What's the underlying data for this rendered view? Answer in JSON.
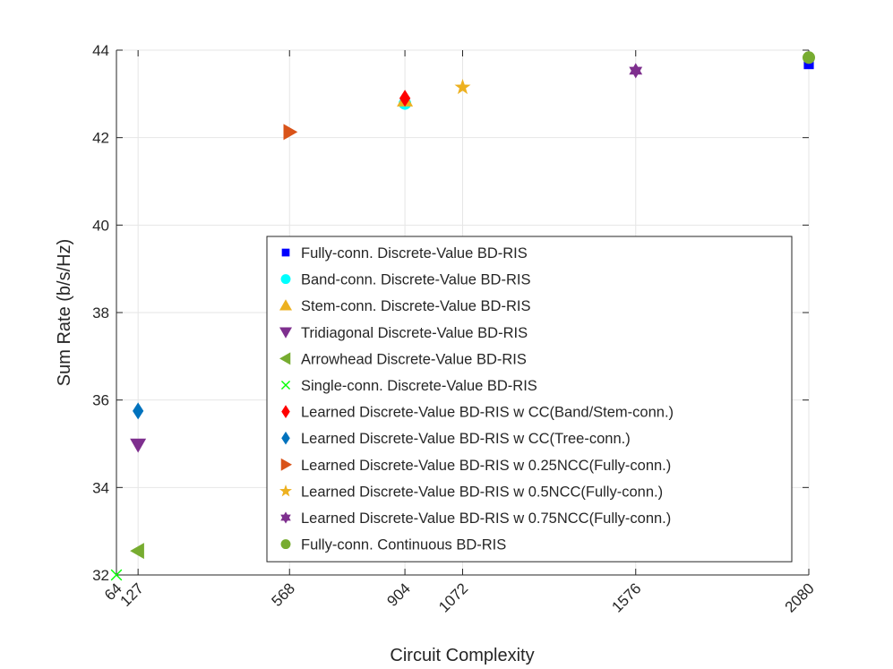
{
  "chart_data": {
    "type": "scatter",
    "title": "",
    "xlabel": "Circuit Complexity",
    "ylabel": "Sum Rate (b/s/Hz)",
    "xlim": [
      64,
      2080
    ],
    "ylim": [
      32,
      44
    ],
    "x_ticks": [
      64,
      127,
      568,
      904,
      1072,
      1576,
      2080
    ],
    "x_tick_labels": [
      "64",
      "127",
      "568",
      "904",
      "1072",
      "1576",
      "2080"
    ],
    "y_ticks": [
      32,
      34,
      36,
      38,
      40,
      42,
      44
    ],
    "y_tick_labels": [
      "32",
      "34",
      "36",
      "38",
      "40",
      "42",
      "44"
    ],
    "grid": true,
    "legend_position": "center",
    "series": [
      {
        "name": "Fully-conn. Discrete-Value BD-RIS",
        "marker": "square",
        "color": "#0000ff",
        "x": [
          2080
        ],
        "y": [
          43.68
        ]
      },
      {
        "name": "Band-conn. Discrete-Value BD-RIS",
        "marker": "circle",
        "color": "#00ffff",
        "x": [
          904
        ],
        "y": [
          42.78
        ]
      },
      {
        "name": "Stem-conn. Discrete-Value BD-RIS",
        "marker": "triangle-up",
        "color": "#edb120",
        "x": [
          904
        ],
        "y": [
          42.85
        ]
      },
      {
        "name": "Tridiagonal Discrete-Value BD-RIS",
        "marker": "triangle-down",
        "color": "#7e2f8e",
        "x": [
          127
        ],
        "y": [
          34.98
        ]
      },
      {
        "name": "Arrowhead Discrete-Value BD-RIS",
        "marker": "triangle-left",
        "color": "#77ac30",
        "x": [
          127
        ],
        "y": [
          32.55
        ]
      },
      {
        "name": "Single-conn. Discrete-Value BD-RIS",
        "marker": "x",
        "color": "#00ff00",
        "x": [
          64
        ],
        "y": [
          32.0
        ]
      },
      {
        "name": "Learned Discrete-Value BD-RIS w CC(Band/Stem-conn.)",
        "marker": "diamond",
        "color": "#ff0000",
        "x": [
          904
        ],
        "y": [
          42.9
        ]
      },
      {
        "name": "Learned Discrete-Value BD-RIS w CC(Tree-conn.)",
        "marker": "diamond",
        "color": "#0072bd",
        "x": [
          127
        ],
        "y": [
          35.75
        ]
      },
      {
        "name": "Learned Discrete-Value BD-RIS w 0.25NCC(Fully-conn.)",
        "marker": "triangle-right",
        "color": "#d95319",
        "x": [
          568
        ],
        "y": [
          42.13
        ]
      },
      {
        "name": "Learned Discrete-Value BD-RIS w 0.5NCC(Fully-conn.)",
        "marker": "pentagram",
        "color": "#edb120",
        "x": [
          1072
        ],
        "y": [
          43.15
        ]
      },
      {
        "name": "Learned Discrete-Value BD-RIS w 0.75NCC(Fully-conn.)",
        "marker": "hexagram",
        "color": "#7e2f8e",
        "x": [
          1576
        ],
        "y": [
          43.53
        ]
      },
      {
        "name": "Fully-conn. Continuous BD-RIS",
        "marker": "circle",
        "color": "#77ac30",
        "x": [
          2080
        ],
        "y": [
          43.83
        ]
      }
    ]
  }
}
